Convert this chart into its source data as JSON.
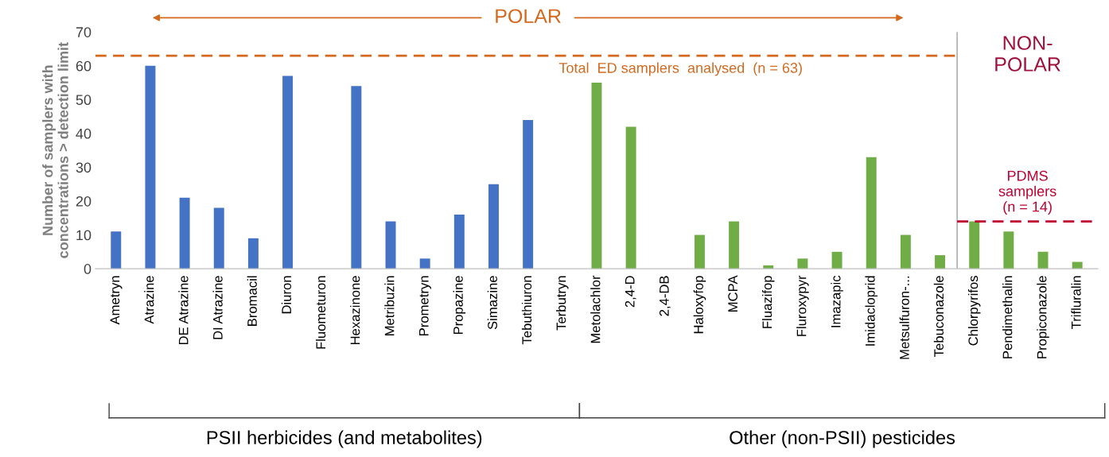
{
  "chart_data": {
    "type": "bar",
    "categories": [
      "Ametryn",
      "Atrazine",
      "DE Atrazine",
      "DI Atrazine",
      "Bromacil",
      "Diuron",
      "Fluometuron",
      "Hexazinone",
      "Metribuzin",
      "Prometryn",
      "Propazine",
      "Simazine",
      "Tebuthiuron",
      "Terbutryn",
      "Metolachlor",
      "2,4-D",
      "2,4-DB",
      "Haloxyfop",
      "MCPA",
      "Fluazifop",
      "Fluroxypyr",
      "Imazapic",
      "Imidacloprid",
      "Metsulfuron-...",
      "Tebuconazole",
      "Chlorpyrifos",
      "Pendimethalin",
      "Propiconazole",
      "Trifluralin"
    ],
    "values": [
      11,
      60,
      21,
      18,
      9,
      57,
      0,
      54,
      14,
      3,
      16,
      25,
      44,
      0,
      55,
      42,
      0,
      10,
      14,
      1,
      3,
      5,
      33,
      10,
      4,
      14,
      11,
      5,
      2
    ],
    "colors": [
      "#4472c4",
      "#4472c4",
      "#4472c4",
      "#4472c4",
      "#4472c4",
      "#4472c4",
      "#4472c4",
      "#4472c4",
      "#4472c4",
      "#4472c4",
      "#4472c4",
      "#4472c4",
      "#4472c4",
      "#4472c4",
      "#70ad47",
      "#70ad47",
      "#70ad47",
      "#70ad47",
      "#70ad47",
      "#70ad47",
      "#70ad47",
      "#70ad47",
      "#70ad47",
      "#70ad47",
      "#70ad47",
      "#70ad47",
      "#70ad47",
      "#70ad47",
      "#70ad47"
    ],
    "ylabel": "Number of samplers with\nconcentrations > detection limit",
    "ylim": [
      0,
      70
    ],
    "yticks": [
      0,
      10,
      20,
      30,
      40,
      50,
      60,
      70
    ],
    "grid": false,
    "legend": false,
    "ref_lines": [
      {
        "axis": "y",
        "value": 63,
        "label": "Total  ED samplers  analysed  (n = 63)",
        "color": "#d4691e",
        "line_style": "dashed"
      },
      {
        "axis": "y",
        "value": 14,
        "label": "PDMS\nsamplers\n(n = 14)",
        "color": "#c00030",
        "line_style": "dashed"
      }
    ],
    "annotations": [
      "POLAR",
      "NON-\nPOLAR",
      "PSII herbicides (and metabolites)",
      "Other (non-PSII) pesticides"
    ]
  }
}
